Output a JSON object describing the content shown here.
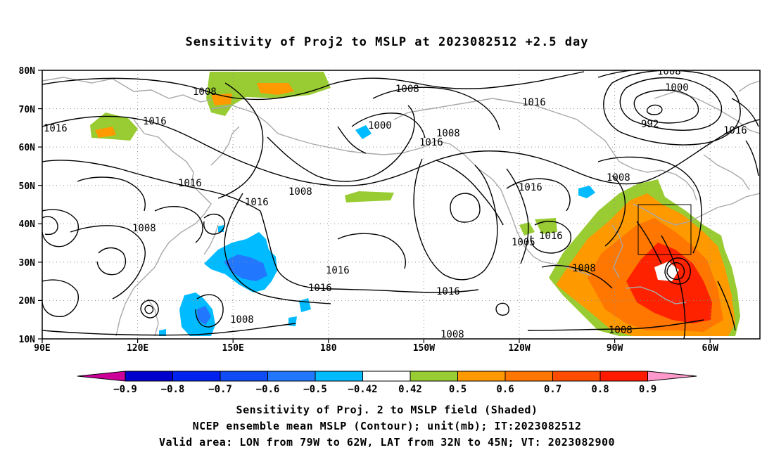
{
  "title": "Sensitivity of Proj2 to MSLP at 2023082512 +2.5 day",
  "map": {
    "lat_ticks": [
      "80N",
      "70N",
      "60N",
      "50N",
      "40N",
      "30N",
      "20N",
      "10N"
    ],
    "lon_ticks": [
      "90E",
      "120E",
      "150E",
      "180",
      "150W",
      "120W",
      "90W",
      "60W"
    ],
    "contour_labels": [
      {
        "id": "c1",
        "text": "1008"
      },
      {
        "id": "c2",
        "text": "1016"
      },
      {
        "id": "c3",
        "text": "1016"
      },
      {
        "id": "c4",
        "text": "1008"
      },
      {
        "id": "c5",
        "text": "1016"
      },
      {
        "id": "c6",
        "text": "1008"
      },
      {
        "id": "c7",
        "text": "1000"
      },
      {
        "id": "c8",
        "text": "1008"
      },
      {
        "id": "c9",
        "text": "1016"
      },
      {
        "id": "c10",
        "text": "1016"
      },
      {
        "id": "c11",
        "text": "1008"
      },
      {
        "id": "c12",
        "text": "1000"
      },
      {
        "id": "c13",
        "text": "992"
      },
      {
        "id": "c14",
        "text": "1016"
      },
      {
        "id": "c15",
        "text": "1008"
      },
      {
        "id": "c16",
        "text": "1016"
      },
      {
        "id": "c17",
        "text": "1016"
      },
      {
        "id": "c18",
        "text": "1016"
      },
      {
        "id": "c19",
        "text": "1016"
      },
      {
        "id": "c20",
        "text": "1008"
      },
      {
        "id": "c21",
        "text": "1008"
      },
      {
        "id": "c22",
        "text": "1005"
      },
      {
        "id": "c23",
        "text": "1016"
      },
      {
        "id": "c24",
        "text": "1008"
      },
      {
        "id": "c25",
        "text": "1008"
      },
      {
        "id": "c26",
        "text": "1008"
      },
      {
        "id": "c27",
        "text": "1016"
      },
      {
        "id": "c28",
        "text": "1008"
      }
    ],
    "colors": {
      "contour": "#000000",
      "coast": "#a8a8a8",
      "grid": "#8c8c8c",
      "green": "#99cc33",
      "orange": "#ff9900",
      "dark_orange": "#ff6600",
      "red": "#ff2200",
      "light_blue": "#00bbff",
      "mid_blue": "#2277ff",
      "dark_blue": "#0000cc"
    }
  },
  "colorbar": {
    "labels": [
      "−0.9",
      "−0.8",
      "−0.7",
      "−0.6",
      "−0.5",
      "−0.42",
      "0.42",
      "0.5",
      "0.6",
      "0.7",
      "0.8",
      "0.9"
    ],
    "bins": [
      "#cc0099",
      "#0000cc",
      "#0022ee",
      "#0f4cf5",
      "#2277ff",
      "#00bbff",
      "#ffffff",
      "#99cc33",
      "#ff9900",
      "#ff7700",
      "#ff4d00",
      "#ff1a00",
      "#ff99cc"
    ]
  },
  "footer": {
    "line1": "Sensitivity of Proj. 2 to MSLP field (Shaded)",
    "line2": "NCEP ensemble mean MSLP (Contour); unit(mb); IT:2023082512",
    "line3": "Valid area: LON from 79W to 62W, LAT from 32N to 45N; VT: 2023082900"
  }
}
